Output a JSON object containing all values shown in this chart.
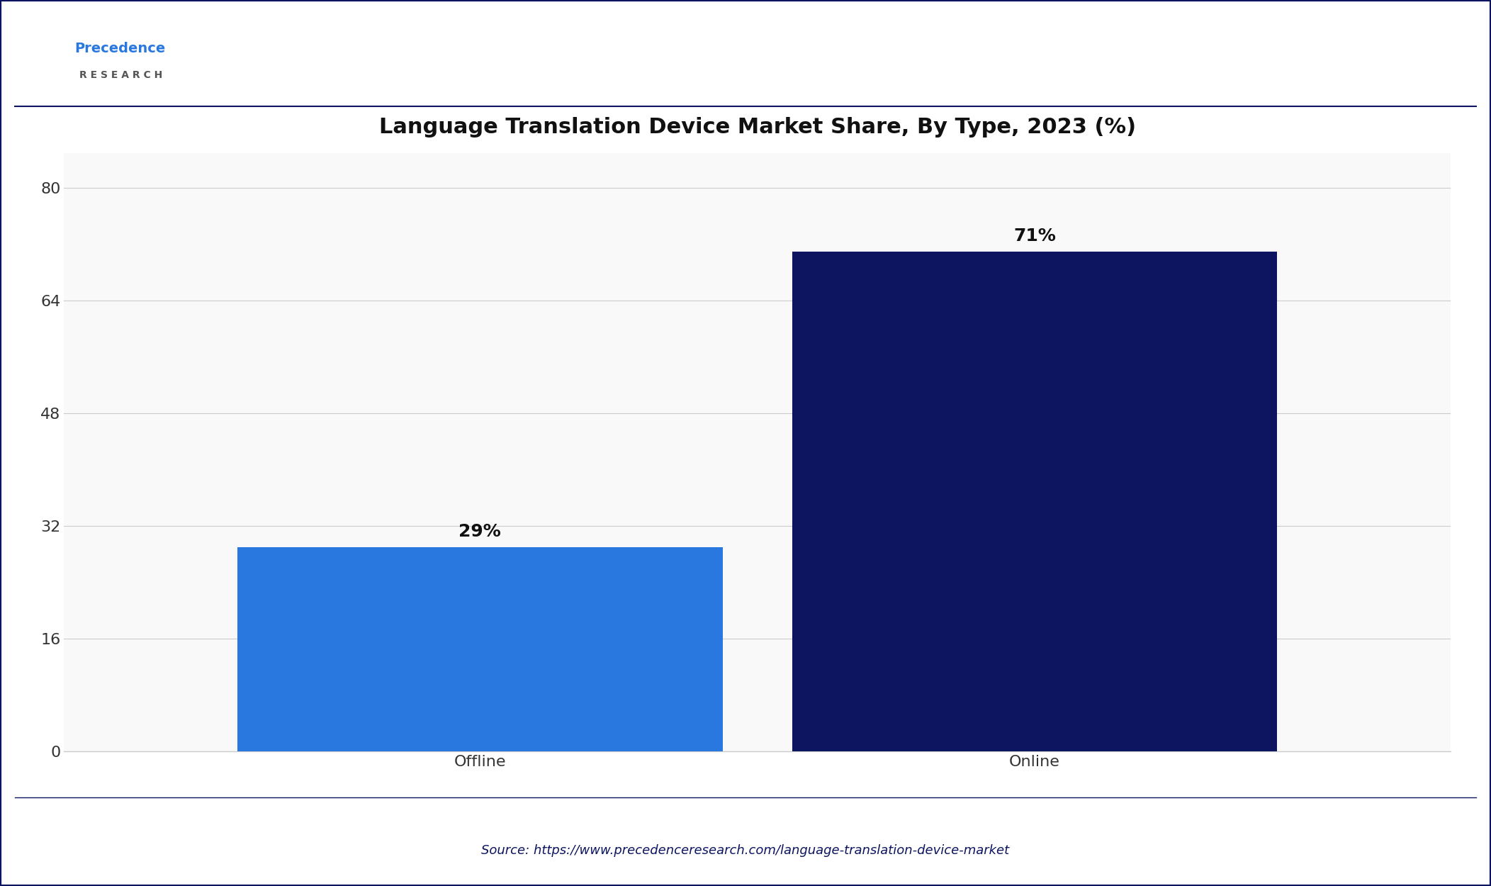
{
  "title": "Language Translation Device Market Share, By Type, 2023 (%)",
  "categories": [
    "Offline",
    "Online"
  ],
  "values": [
    29,
    71
  ],
  "bar_colors": [
    "#2878e0",
    "#0d1560"
  ],
  "labels": [
    "29%",
    "71%"
  ],
  "ylim": [
    0,
    85
  ],
  "yticks": [
    0,
    16,
    32,
    48,
    64,
    80
  ],
  "background_color": "#ffffff",
  "plot_bg_color": "#f9f9f9",
  "title_fontsize": 22,
  "tick_fontsize": 16,
  "label_fontsize": 18,
  "source_text": "Source: https://www.precedenceresearch.com/language-translation-device-market",
  "source_fontsize": 13,
  "source_color": "#0d1560",
  "bar_width": 0.35,
  "grid_color": "#cccccc",
  "title_color": "#111111",
  "tick_color": "#333333",
  "border_color": "#0d1560",
  "logo_precedence_color": "#2878e0",
  "logo_research_color": "#555555"
}
